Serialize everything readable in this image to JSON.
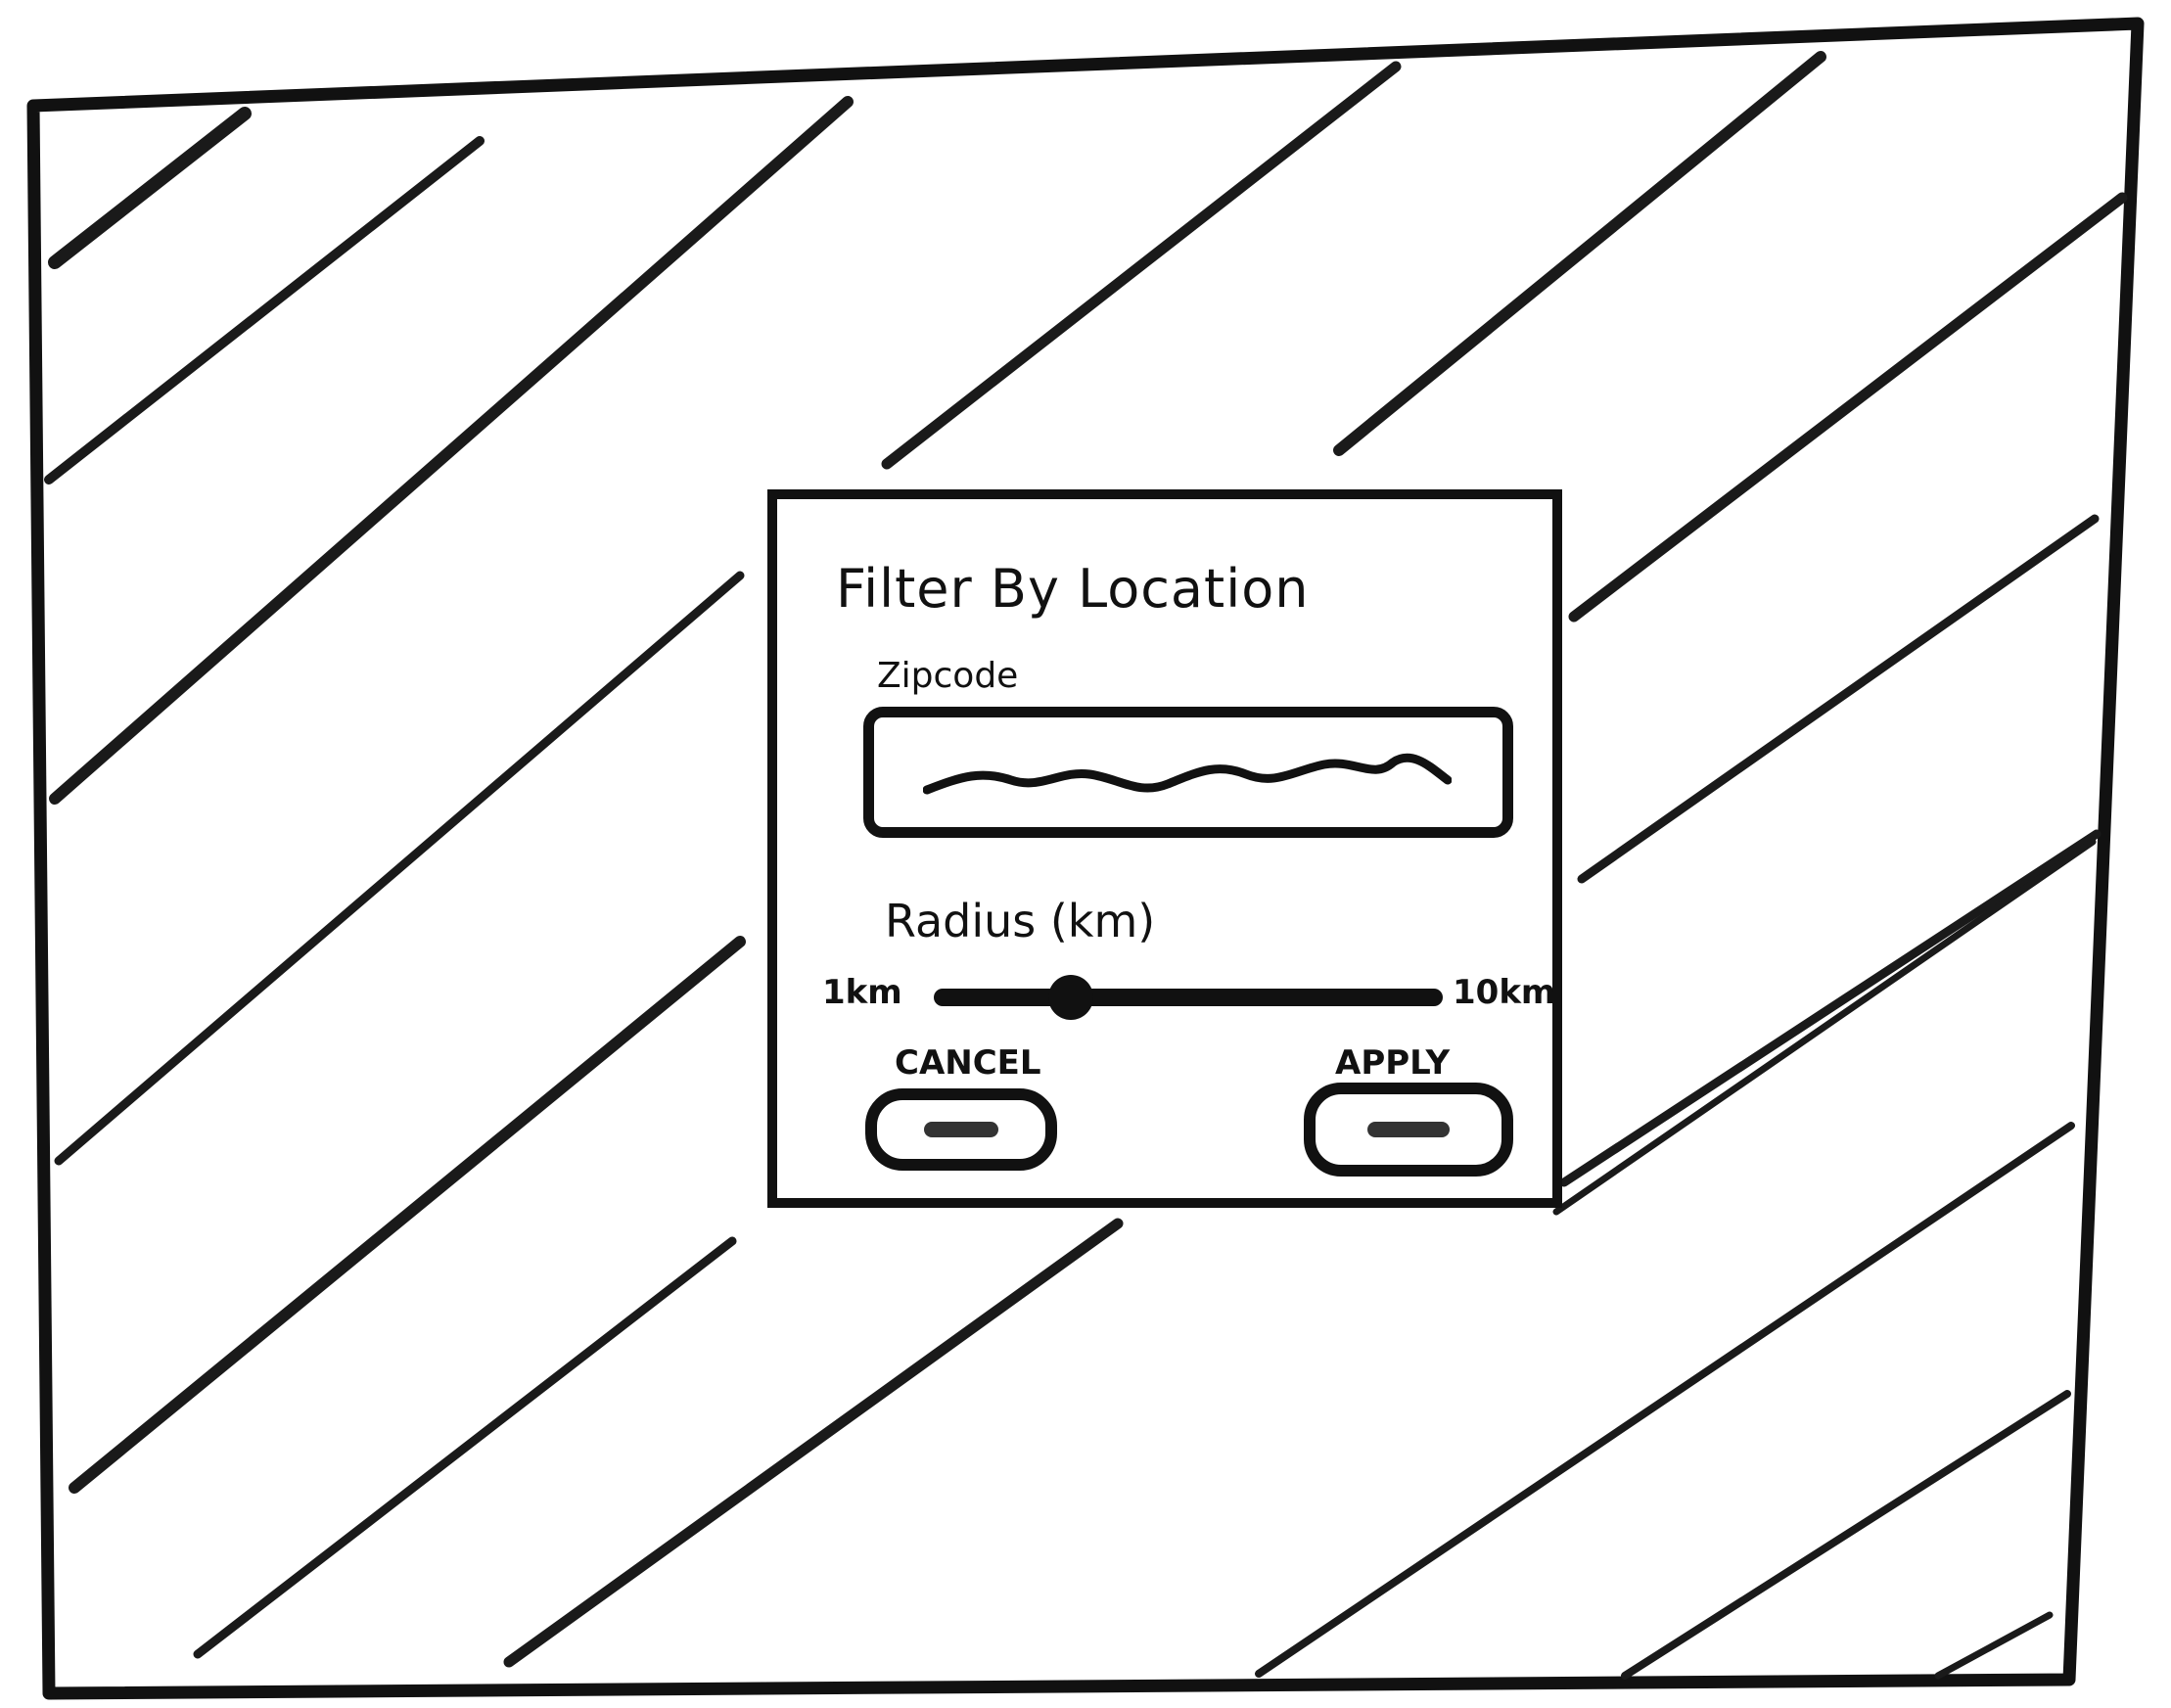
{
  "modal": {
    "title": "Filter By Location",
    "zipcode": {
      "label": "Zipcode",
      "value": ""
    },
    "radius": {
      "label": "Radius (km)",
      "min_label": "1km",
      "max_label": "10km",
      "value_fraction": 0.27
    },
    "cancel_label": "CANCEL",
    "apply_label": "APPLY"
  },
  "colors": {
    "ink": "#111111",
    "paper": "#ffffff",
    "hatch": "#1a1a1a"
  },
  "icons": {
    "zipcode_value": "scribble-placeholder-icon"
  }
}
